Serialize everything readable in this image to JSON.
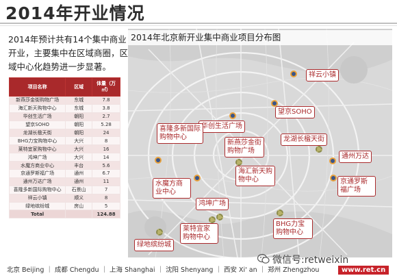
{
  "title": "2014年开业情况",
  "intro": "2014年预计共有14个集中商业开业，主要集中在区域商圈，区域中心化趋势进一步显著。",
  "map_title": "2014年北京新开业集中商业项目分布图",
  "table": {
    "headers": [
      "项目名称",
      "区域",
      "体量（万㎡）"
    ],
    "rows": [
      [
        "新燕莎金街购物广场",
        "东城",
        "7.8"
      ],
      [
        "海汇新天购物中心",
        "东城",
        "3.8"
      ],
      [
        "华创生活广场",
        "朝阳",
        "2.7"
      ],
      [
        "望京SOHO",
        "朝阳",
        "5.28"
      ],
      [
        "龙湖长楹天街",
        "朝阳",
        "24"
      ],
      [
        "BHG力宝购物中心",
        "大兴",
        "8"
      ],
      [
        "莱特宜家购物中心",
        "大兴",
        "16"
      ],
      [
        "鸿坤广场",
        "大兴",
        "14"
      ],
      [
        "水魔方商业中心",
        "丰台",
        "5.6"
      ],
      [
        "京通罗斯福广场",
        "通州",
        "6.7"
      ],
      [
        "通州万达广场",
        "通州",
        "11"
      ],
      [
        "喜隆多新国际购物中心",
        "石景山",
        "7"
      ],
      [
        "祥云小镇",
        "顺义",
        "8"
      ],
      [
        "绿地缤纷城",
        "房山",
        "5"
      ]
    ],
    "total_label": "Total",
    "total_value": "124.88"
  },
  "callouts": [
    "祥云小镇",
    "望京SOHO",
    "华创生活广场",
    "龙湖长楹天街",
    "喜隆多新国际购物中心",
    "新燕莎金街购物广场",
    "海汇新天购物中心",
    "通州万达",
    "京通罗斯福广场",
    "水魔方商业中心",
    "鸿坤广场",
    "莱特宜家购物中心",
    "BHG力宝购物中心",
    "绿地缤纷城"
  ],
  "footer": "北京 Beijing ｜ 成都 Chengdu ｜ 上海 Shanghai ｜ 沈阳 Shenyang ｜ 西安 Xi' an ｜ 郑州 Zhengzhou",
  "wechat": "微信号:retweixin",
  "site": "www.ret.cn",
  "colors": {
    "accent": "#a9292b",
    "site_badge": "#c7232a",
    "pin": "#39558a"
  }
}
